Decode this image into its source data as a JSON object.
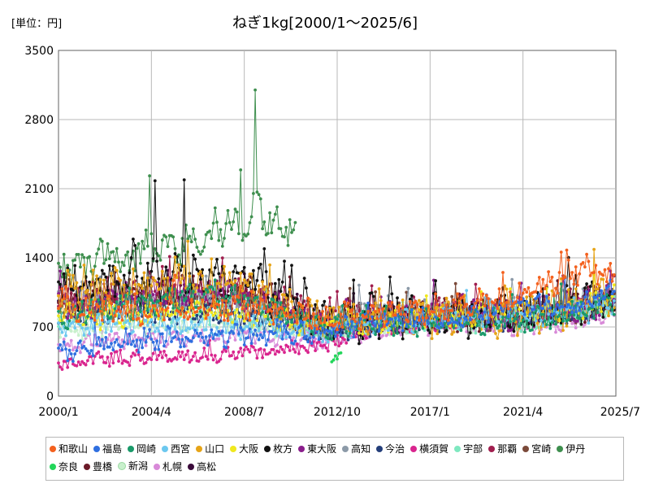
{
  "chart_data": {
    "type": "line",
    "title": "ねぎ1kg[2000/1～2025/6]",
    "unit_label": "[単位：円]",
    "xlabel": "",
    "ylabel": "",
    "x_tick_labels": [
      "2000/1",
      "2004/4",
      "2008/7",
      "2012/10",
      "2017/1",
      "2021/4",
      "2025/7"
    ],
    "y_ticks": [
      0,
      700,
      1400,
      2100,
      2800,
      3500
    ],
    "ylim": [
      0,
      3500
    ],
    "xlim": [
      "2000/1",
      "2025/7"
    ],
    "grid": true,
    "legend_position": "bottom",
    "series": [
      {
        "name": "和歌山",
        "color": "#f4611e",
        "anchors": [
          [
            0,
            900
          ],
          [
            36,
            850
          ],
          [
            72,
            900
          ],
          [
            108,
            900
          ],
          [
            144,
            800
          ],
          [
            180,
            820
          ],
          [
            216,
            900
          ],
          [
            252,
            1000
          ],
          [
            288,
            1300
          ],
          [
            305,
            1200
          ]
        ],
        "amplitude": 110
      },
      {
        "name": "福島",
        "color": "#2f6fe0",
        "anchors": [
          [
            0,
            450
          ],
          [
            36,
            560
          ],
          [
            72,
            600
          ],
          [
            108,
            620
          ],
          [
            144,
            640
          ],
          [
            180,
            760
          ],
          [
            216,
            780
          ],
          [
            252,
            900
          ],
          [
            288,
            950
          ],
          [
            305,
            1000
          ]
        ],
        "amplitude": 90
      },
      {
        "name": "岡崎",
        "color": "#1a9a6a",
        "anchors": [
          [
            0,
            800
          ],
          [
            36,
            900
          ],
          [
            72,
            1000
          ],
          [
            108,
            950
          ],
          [
            144,
            700
          ],
          [
            180,
            750
          ],
          [
            216,
            750
          ],
          [
            252,
            750
          ],
          [
            288,
            850
          ],
          [
            305,
            950
          ]
        ],
        "amplitude": 100
      },
      {
        "name": "西宮",
        "color": "#6cc8ef",
        "anchors": [
          [
            0,
            700
          ],
          [
            36,
            750
          ],
          [
            72,
            700
          ],
          [
            108,
            700
          ],
          [
            144,
            650
          ],
          [
            180,
            750
          ],
          [
            216,
            800
          ],
          [
            252,
            800
          ],
          [
            288,
            850
          ],
          [
            305,
            950
          ]
        ],
        "amplitude": 90
      },
      {
        "name": "山口",
        "color": "#e6a417",
        "anchors": [
          [
            0,
            1000
          ],
          [
            36,
            1100
          ],
          [
            72,
            1150
          ],
          [
            108,
            1100
          ],
          [
            144,
            750
          ],
          [
            180,
            800
          ],
          [
            216,
            800
          ],
          [
            252,
            820
          ],
          [
            288,
            900
          ],
          [
            305,
            1000
          ]
        ],
        "amplitude": 160
      },
      {
        "name": "大阪",
        "color": "#f0e81e",
        "anchors": [
          [
            0,
            800
          ],
          [
            36,
            800
          ],
          [
            72,
            850
          ],
          [
            108,
            800
          ],
          [
            144,
            700
          ],
          [
            180,
            750
          ],
          [
            216,
            800
          ],
          [
            252,
            850
          ],
          [
            288,
            900
          ],
          [
            305,
            1000
          ]
        ],
        "amplitude": 90
      },
      {
        "name": "枚方",
        "color": "#111111",
        "anchors": [
          [
            0,
            1050
          ],
          [
            36,
            1150
          ],
          [
            72,
            1200
          ],
          [
            108,
            1150
          ],
          [
            144,
            750
          ],
          [
            180,
            800
          ],
          [
            216,
            820
          ],
          [
            252,
            850
          ],
          [
            288,
            900
          ],
          [
            305,
            1000
          ]
        ],
        "amplitude": 180
      },
      {
        "name": "東大阪",
        "color": "#8a1e8c",
        "anchors": [
          [
            0,
            900
          ],
          [
            36,
            1000
          ],
          [
            72,
            1050
          ],
          [
            108,
            1000
          ],
          [
            144,
            720
          ],
          [
            180,
            800
          ],
          [
            216,
            820
          ],
          [
            252,
            820
          ],
          [
            288,
            900
          ],
          [
            305,
            1000
          ]
        ],
        "amplitude": 120
      },
      {
        "name": "高知",
        "color": "#8c9aa8",
        "anchors": [
          [
            0,
            900
          ],
          [
            36,
            950
          ],
          [
            72,
            1000
          ],
          [
            108,
            950
          ],
          [
            144,
            720
          ],
          [
            180,
            880
          ],
          [
            216,
            850
          ],
          [
            252,
            900
          ],
          [
            288,
            950
          ],
          [
            305,
            1000
          ]
        ],
        "amplitude": 110
      },
      {
        "name": "今治",
        "color": "#243e7a",
        "anchors": [
          [
            0,
            800
          ],
          [
            36,
            850
          ],
          [
            72,
            850
          ],
          [
            108,
            800
          ],
          [
            144,
            650
          ],
          [
            180,
            750
          ],
          [
            216,
            780
          ],
          [
            252,
            780
          ],
          [
            288,
            850
          ],
          [
            305,
            950
          ]
        ],
        "amplitude": 90
      },
      {
        "name": "横須賀",
        "color": "#d9258e",
        "anchors": [
          [
            0,
            330
          ],
          [
            36,
            380
          ],
          [
            72,
            400
          ],
          [
            108,
            450
          ],
          [
            144,
            500
          ],
          [
            180,
            700
          ],
          [
            216,
            750
          ],
          [
            252,
            800
          ],
          [
            288,
            900
          ],
          [
            305,
            1000
          ]
        ],
        "amplitude": 60
      },
      {
        "name": "宇部",
        "color": "#7fe8c0",
        "anchors": [
          [
            0,
            800
          ],
          [
            36,
            850
          ],
          [
            72,
            850
          ],
          [
            108,
            800
          ],
          [
            144,
            700
          ],
          [
            180,
            750
          ],
          [
            216,
            750
          ],
          [
            252,
            760
          ],
          [
            288,
            850
          ],
          [
            305,
            950
          ]
        ],
        "amplitude": 90
      },
      {
        "name": "那覇",
        "color": "#a01e4e",
        "anchors": [
          [
            0,
            1000
          ],
          [
            36,
            1050
          ],
          [
            72,
            1100
          ],
          [
            108,
            1050
          ],
          [
            144,
            750
          ],
          [
            180,
            820
          ],
          [
            216,
            850
          ],
          [
            252,
            850
          ],
          [
            288,
            950
          ],
          [
            305,
            1050
          ]
        ],
        "amplitude": 130
      },
      {
        "name": "宮崎",
        "color": "#7b4a3a",
        "anchors": [
          [
            0,
            900
          ],
          [
            36,
            950
          ],
          [
            72,
            1000
          ],
          [
            108,
            950
          ],
          [
            144,
            720
          ],
          [
            180,
            780
          ],
          [
            216,
            800
          ],
          [
            252,
            800
          ],
          [
            288,
            900
          ],
          [
            305,
            1000
          ]
        ],
        "amplitude": 110
      },
      {
        "name": "伊丹",
        "color": "#3e8f4e",
        "anchors": [
          [
            0,
            1300
          ],
          [
            36,
            1400
          ],
          [
            72,
            1600
          ],
          [
            108,
            1850
          ],
          [
            130,
            1700
          ]
        ],
        "amplitude": 170
      },
      {
        "name": "奈良",
        "color": "#22d65a",
        "anchors": [
          [
            150,
            360
          ],
          [
            155,
            400
          ]
        ],
        "amplitude": 40
      },
      {
        "name": "豊橋",
        "color": "#6b1a28",
        "anchors": [
          [
            0,
            950
          ],
          [
            36,
            1000
          ],
          [
            72,
            1050
          ],
          [
            108,
            1050
          ],
          [
            144,
            750
          ],
          [
            180,
            800
          ],
          [
            216,
            820
          ],
          [
            252,
            820
          ],
          [
            288,
            900
          ],
          [
            305,
            1000
          ]
        ],
        "amplitude": 120
      },
      {
        "name": "新潟",
        "color": "#c8f0cc",
        "anchors": [
          [
            0,
            650
          ],
          [
            36,
            700
          ],
          [
            72,
            720
          ],
          [
            108,
            700
          ],
          [
            144,
            650
          ],
          [
            180,
            700
          ],
          [
            216,
            720
          ],
          [
            252,
            750
          ],
          [
            288,
            800
          ],
          [
            305,
            900
          ]
        ],
        "amplitude": 70
      },
      {
        "name": "札幌",
        "color": "#d88ad8",
        "anchors": [
          [
            0,
            520
          ],
          [
            36,
            560
          ],
          [
            72,
            600
          ],
          [
            108,
            620
          ],
          [
            144,
            560
          ],
          [
            180,
            680
          ],
          [
            216,
            720
          ],
          [
            252,
            700
          ],
          [
            288,
            760
          ],
          [
            305,
            850
          ]
        ],
        "amplitude": 70
      },
      {
        "name": "高松",
        "color": "#3a0a3a",
        "anchors": [
          [
            0,
            900
          ],
          [
            36,
            950
          ],
          [
            72,
            1000
          ],
          [
            108,
            950
          ],
          [
            144,
            700
          ],
          [
            180,
            780
          ],
          [
            216,
            800
          ],
          [
            252,
            800
          ],
          [
            288,
            900
          ],
          [
            305,
            1000
          ]
        ],
        "amplitude": 110
      }
    ],
    "annotations": [
      {
        "label": "伊丹 peak",
        "month": 108,
        "value": 3100
      },
      {
        "label": "枚方 peak",
        "month": 53,
        "value": 2180
      },
      {
        "label": "枚方 peak",
        "month": 69,
        "value": 2190
      },
      {
        "label": "伊丹 peak",
        "month": 50,
        "value": 2230
      },
      {
        "label": "伊丹 peak",
        "month": 100,
        "value": 2290
      }
    ]
  }
}
